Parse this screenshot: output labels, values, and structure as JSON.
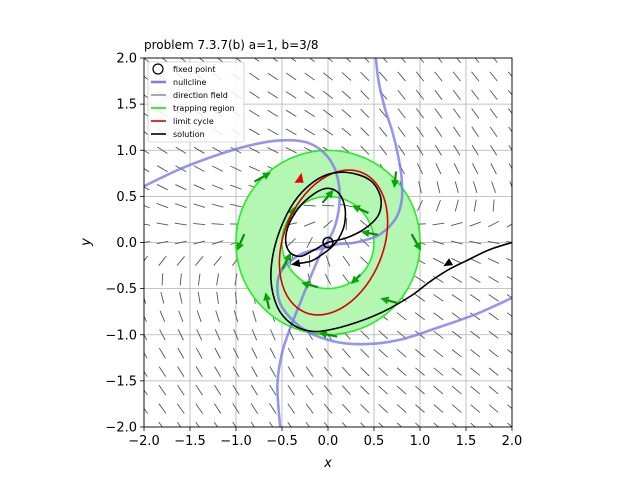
{
  "chart_data": {
    "type": "line",
    "title": "problem 7.3.7(b) a=1, b=3/8",
    "xlabel": "x",
    "ylabel": "y",
    "xlim": [
      -2.0,
      2.0
    ],
    "ylim": [
      -2.0,
      2.0
    ],
    "xticks": [
      "−2.0",
      "−1.5",
      "−1.0",
      "−0.5",
      "0.0",
      "0.5",
      "1.0",
      "1.5",
      "2.0"
    ],
    "yticks": [
      "−2.0",
      "−1.5",
      "−1.0",
      "−0.5",
      "0.0",
      "0.5",
      "1.0",
      "1.5",
      "2.0"
    ],
    "grid": true,
    "legend_position": "top-left",
    "legend": [
      {
        "label": "fixed point",
        "color": "#000000",
        "kind": "marker"
      },
      {
        "label": "nullcline",
        "color": "#7b7bea",
        "kind": "line"
      },
      {
        "label": "direction field",
        "color": "#555555",
        "kind": "line"
      },
      {
        "label": "trapping region",
        "color": "#00ee00",
        "kind": "line"
      },
      {
        "label": "limit cycle",
        "color": "#dd0000",
        "kind": "line"
      },
      {
        "label": "solution",
        "color": "#000000",
        "kind": "line"
      }
    ],
    "fixed_point": {
      "x": 0.0,
      "y": 0.0
    },
    "trapping_region": {
      "center": [
        0.0,
        0.0
      ],
      "r_inner": 0.5,
      "r_outer": 1.0
    },
    "nullclines": [
      {
        "name": "nullcline A",
        "points": [
          [
            -2.0,
            0.61
          ],
          [
            -1.6,
            0.8
          ],
          [
            -1.2,
            0.95
          ],
          [
            -0.9,
            1.04
          ],
          [
            -0.6,
            1.1
          ],
          [
            -0.3,
            1.1
          ],
          [
            -0.1,
            1.02
          ],
          [
            0.05,
            0.85
          ],
          [
            0.12,
            0.62
          ],
          [
            0.12,
            0.38
          ],
          [
            0.07,
            0.16
          ],
          [
            0.0,
            0.02
          ],
          [
            -0.08,
            -0.12
          ],
          [
            -0.18,
            -0.35
          ],
          [
            -0.28,
            -0.6
          ],
          [
            -0.4,
            -0.9
          ],
          [
            -0.5,
            -1.2
          ],
          [
            -0.55,
            -1.55
          ],
          [
            -0.52,
            -2.0
          ]
        ]
      },
      {
        "name": "nullcline B",
        "points": [
          [
            0.52,
            2.0
          ],
          [
            0.55,
            1.75
          ],
          [
            0.62,
            1.45
          ],
          [
            0.7,
            1.2
          ],
          [
            0.76,
            0.95
          ],
          [
            0.8,
            0.7
          ],
          [
            0.8,
            0.45
          ],
          [
            0.73,
            0.25
          ],
          [
            0.55,
            0.08
          ],
          [
            0.3,
            0.0
          ],
          [
            0.1,
            -0.02
          ],
          [
            -0.05,
            -0.06
          ],
          [
            -0.28,
            -0.12
          ],
          [
            -0.48,
            -0.27
          ],
          [
            -0.55,
            -0.45
          ],
          [
            -0.5,
            -0.7
          ],
          [
            -0.25,
            -0.95
          ],
          [
            0.1,
            -1.08
          ],
          [
            0.45,
            -1.1
          ],
          [
            0.8,
            -1.05
          ],
          [
            1.2,
            -0.92
          ],
          [
            1.6,
            -0.78
          ],
          [
            2.0,
            -0.6
          ]
        ]
      }
    ],
    "limit_cycle": {
      "center": [
        0.06,
        0.0
      ],
      "a": 0.82,
      "b": 0.54,
      "angle_deg": 68,
      "arrow_at": [
        -0.32,
        0.68
      ]
    },
    "solution": {
      "points": [
        [
          2.0,
          0.0
        ],
        [
          1.75,
          -0.08
        ],
        [
          1.5,
          -0.2
        ],
        [
          1.3,
          -0.3
        ],
        [
          1.1,
          -0.43
        ],
        [
          0.9,
          -0.58
        ],
        [
          0.6,
          -0.75
        ],
        [
          0.3,
          -0.87
        ],
        [
          0.0,
          -0.95
        ],
        [
          -0.2,
          -0.96
        ],
        [
          -0.4,
          -0.88
        ],
        [
          -0.55,
          -0.7
        ],
        [
          -0.62,
          -0.4
        ],
        [
          -0.58,
          -0.05
        ],
        [
          -0.45,
          0.3
        ],
        [
          -0.28,
          0.55
        ],
        [
          -0.05,
          0.72
        ],
        [
          0.2,
          0.76
        ],
        [
          0.45,
          0.68
        ],
        [
          0.57,
          0.5
        ],
        [
          0.55,
          0.3
        ],
        [
          0.4,
          0.15
        ],
        [
          0.2,
          0.05
        ],
        [
          0.0,
          0.0
        ],
        [
          -0.15,
          -0.08
        ],
        [
          -0.3,
          -0.15
        ],
        [
          -0.42,
          -0.1
        ],
        [
          -0.46,
          0.05
        ],
        [
          -0.4,
          0.25
        ],
        [
          -0.25,
          0.45
        ],
        [
          -0.05,
          0.58
        ],
        [
          0.1,
          0.55
        ],
        [
          0.18,
          0.4
        ],
        [
          0.18,
          0.2
        ],
        [
          0.12,
          0.05
        ],
        [
          0.04,
          -0.05
        ],
        [
          -0.05,
          -0.12
        ],
        [
          -0.18,
          -0.2
        ],
        [
          -0.35,
          -0.23
        ]
      ],
      "arrows": [
        [
          1.3,
          -0.23
        ],
        [
          -0.35,
          -0.23
        ]
      ]
    },
    "boundary_arrows": [
      {
        "x": -0.71,
        "y": 0.71,
        "dx": 0.18,
        "dy": 0.1
      },
      {
        "x": -0.95,
        "y": 0.0,
        "dx": -0.08,
        "dy": -0.18
      },
      {
        "x": -0.66,
        "y": -0.63,
        "dx": -0.04,
        "dy": 0.18
      },
      {
        "x": 0.0,
        "y": -1.0,
        "dx": -0.2,
        "dy": 0.04
      },
      {
        "x": 0.66,
        "y": -0.63,
        "dx": -0.18,
        "dy": 0.05
      },
      {
        "x": 0.96,
        "y": 0.0,
        "dx": 0.1,
        "dy": -0.18
      },
      {
        "x": 0.73,
        "y": 0.68,
        "dx": -0.02,
        "dy": -0.18
      },
      {
        "x": 0.0,
        "y": 0.5,
        "dx": 0.12,
        "dy": 0.14
      },
      {
        "x": -0.4,
        "y": 0.3,
        "dx": 0.08,
        "dy": 0.18
      },
      {
        "x": -0.45,
        "y": -0.2,
        "dx": 0.1,
        "dy": 0.18
      },
      {
        "x": -0.2,
        "y": -0.46,
        "dx": -0.18,
        "dy": 0.05
      },
      {
        "x": 0.3,
        "y": -0.4,
        "dx": -0.1,
        "dy": -0.1
      },
      {
        "x": 0.45,
        "y": 0.1,
        "dx": -0.18,
        "dy": 0.03
      },
      {
        "x": 0.35,
        "y": 0.36,
        "dx": -0.18,
        "dy": 0.08
      }
    ],
    "direction_field": {
      "grid_step": 0.2,
      "range": [
        -2.0,
        2.0
      ]
    }
  }
}
